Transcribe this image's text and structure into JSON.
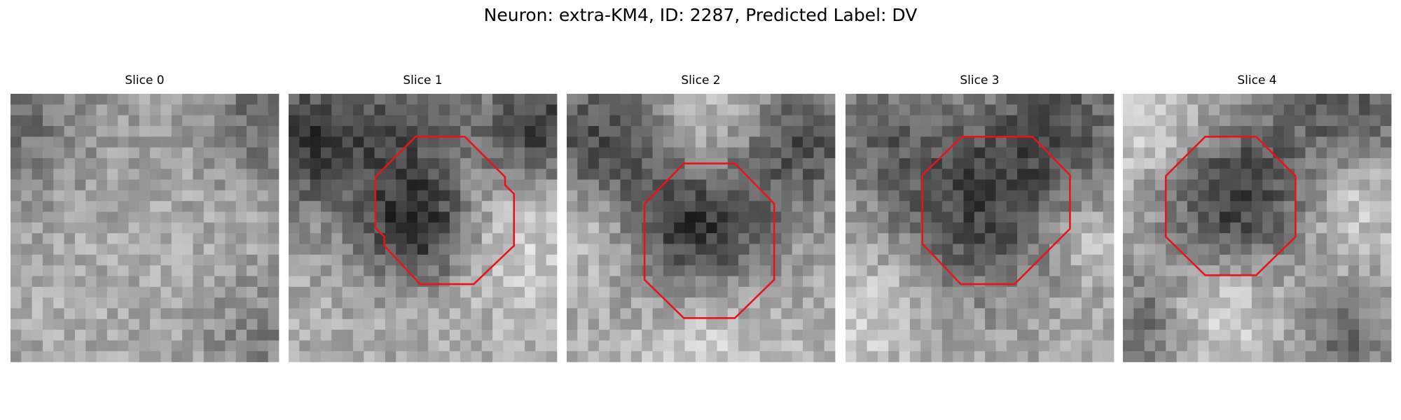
{
  "title": "Neuron: extra-KM4, ID: 2287, Predicted Label: DV",
  "panels": [
    {
      "title": "Slice 0"
    },
    {
      "title": "Slice 1"
    },
    {
      "title": "Slice 2"
    },
    {
      "title": "Slice 3"
    },
    {
      "title": "Slice 4"
    }
  ]
}
